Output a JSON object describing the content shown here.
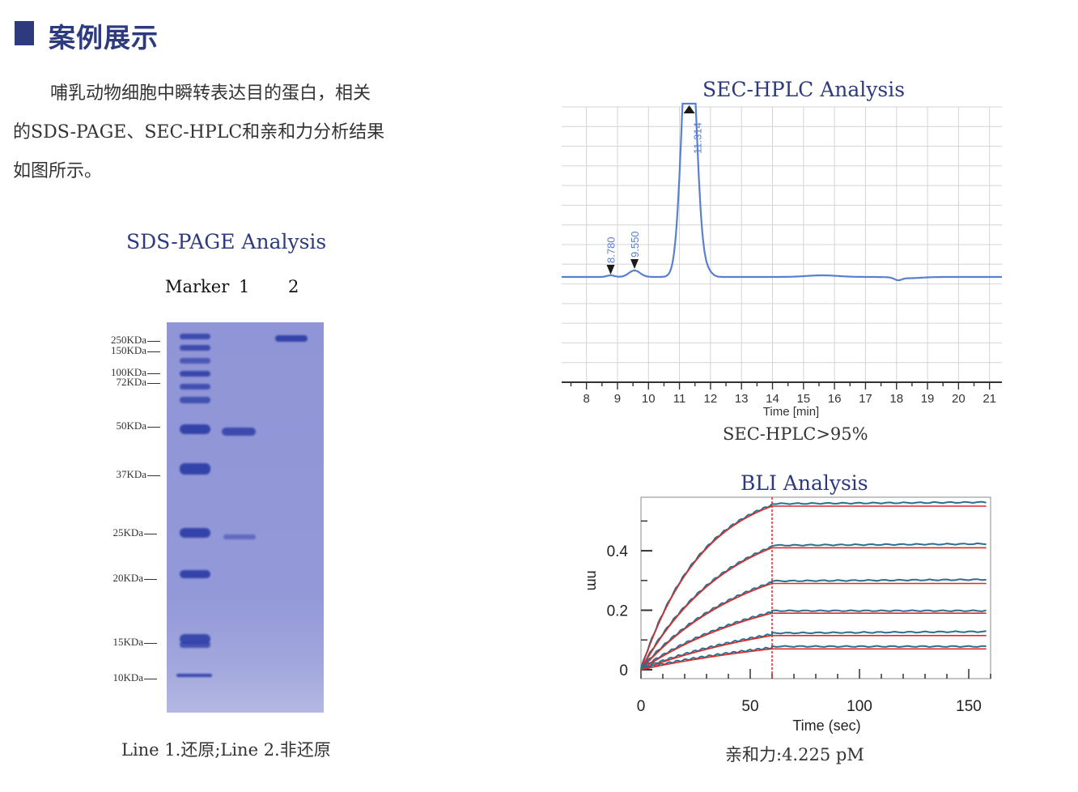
{
  "header": {
    "title": "案例展示"
  },
  "intro": {
    "lines": [
      "哺乳动物细胞中瞬转表达目的蛋白，相关",
      "的SDS-PAGE、SEC-HPLC和亲和力分析结果",
      "如图所示。"
    ]
  },
  "sds_page": {
    "title": "SDS-PAGE Analysis",
    "lanes": [
      "Marker",
      "1",
      "2"
    ],
    "markers": [
      "250KDa",
      "150KDa",
      "100KDa",
      "72KDa",
      "50KDa",
      "37KDa",
      "25KDa",
      "20KDa",
      "15KDa",
      "10KDa"
    ],
    "caption": "Line 1.还原;Line 2.非还原",
    "colors": {
      "gel": "#9398d8",
      "band": "#2f3fa8"
    }
  },
  "chart_data": [
    {
      "type": "line",
      "title": "SEC-HPLC Analysis",
      "xlabel": "Time [min]",
      "ylabel": "",
      "xlim": [
        7.2,
        21.4
      ],
      "x_ticks": [
        8,
        9,
        10,
        11,
        12,
        13,
        14,
        15,
        16,
        17,
        18,
        19,
        20,
        21
      ],
      "peaks": [
        {
          "label": "8.780",
          "x": 8.78
        },
        {
          "label": "9.550",
          "x": 9.55
        },
        {
          "label": "11.314",
          "x": 11.314
        }
      ],
      "caption": "SEC-HPLC>95%",
      "grid": true,
      "color": "#5b7fd0"
    },
    {
      "type": "line",
      "title": "BLI Analysis",
      "xlabel": "Time (sec)",
      "ylabel": "nm",
      "xlim": [
        0,
        160
      ],
      "ylim": [
        -0.03,
        0.58
      ],
      "x_ticks": [
        0,
        50,
        100,
        150
      ],
      "y_ticks": [
        0,
        0.2,
        0.4
      ],
      "y_tick_labels": [
        "0",
        "0.2",
        "0.4"
      ],
      "association_end": 60,
      "series": [
        {
          "values": [
            0.55,
            0.555
          ]
        },
        {
          "values": [
            0.41,
            0.415
          ]
        },
        {
          "values": [
            0.29,
            0.295
          ]
        },
        {
          "values": [
            0.19,
            0.19
          ]
        },
        {
          "values": [
            0.115,
            0.12
          ]
        },
        {
          "values": [
            0.07,
            0.07
          ]
        }
      ],
      "caption": "亲和力:4.225 pM",
      "colors": {
        "data": "#2a6f8e",
        "fit": "#e02a2a"
      }
    }
  ]
}
